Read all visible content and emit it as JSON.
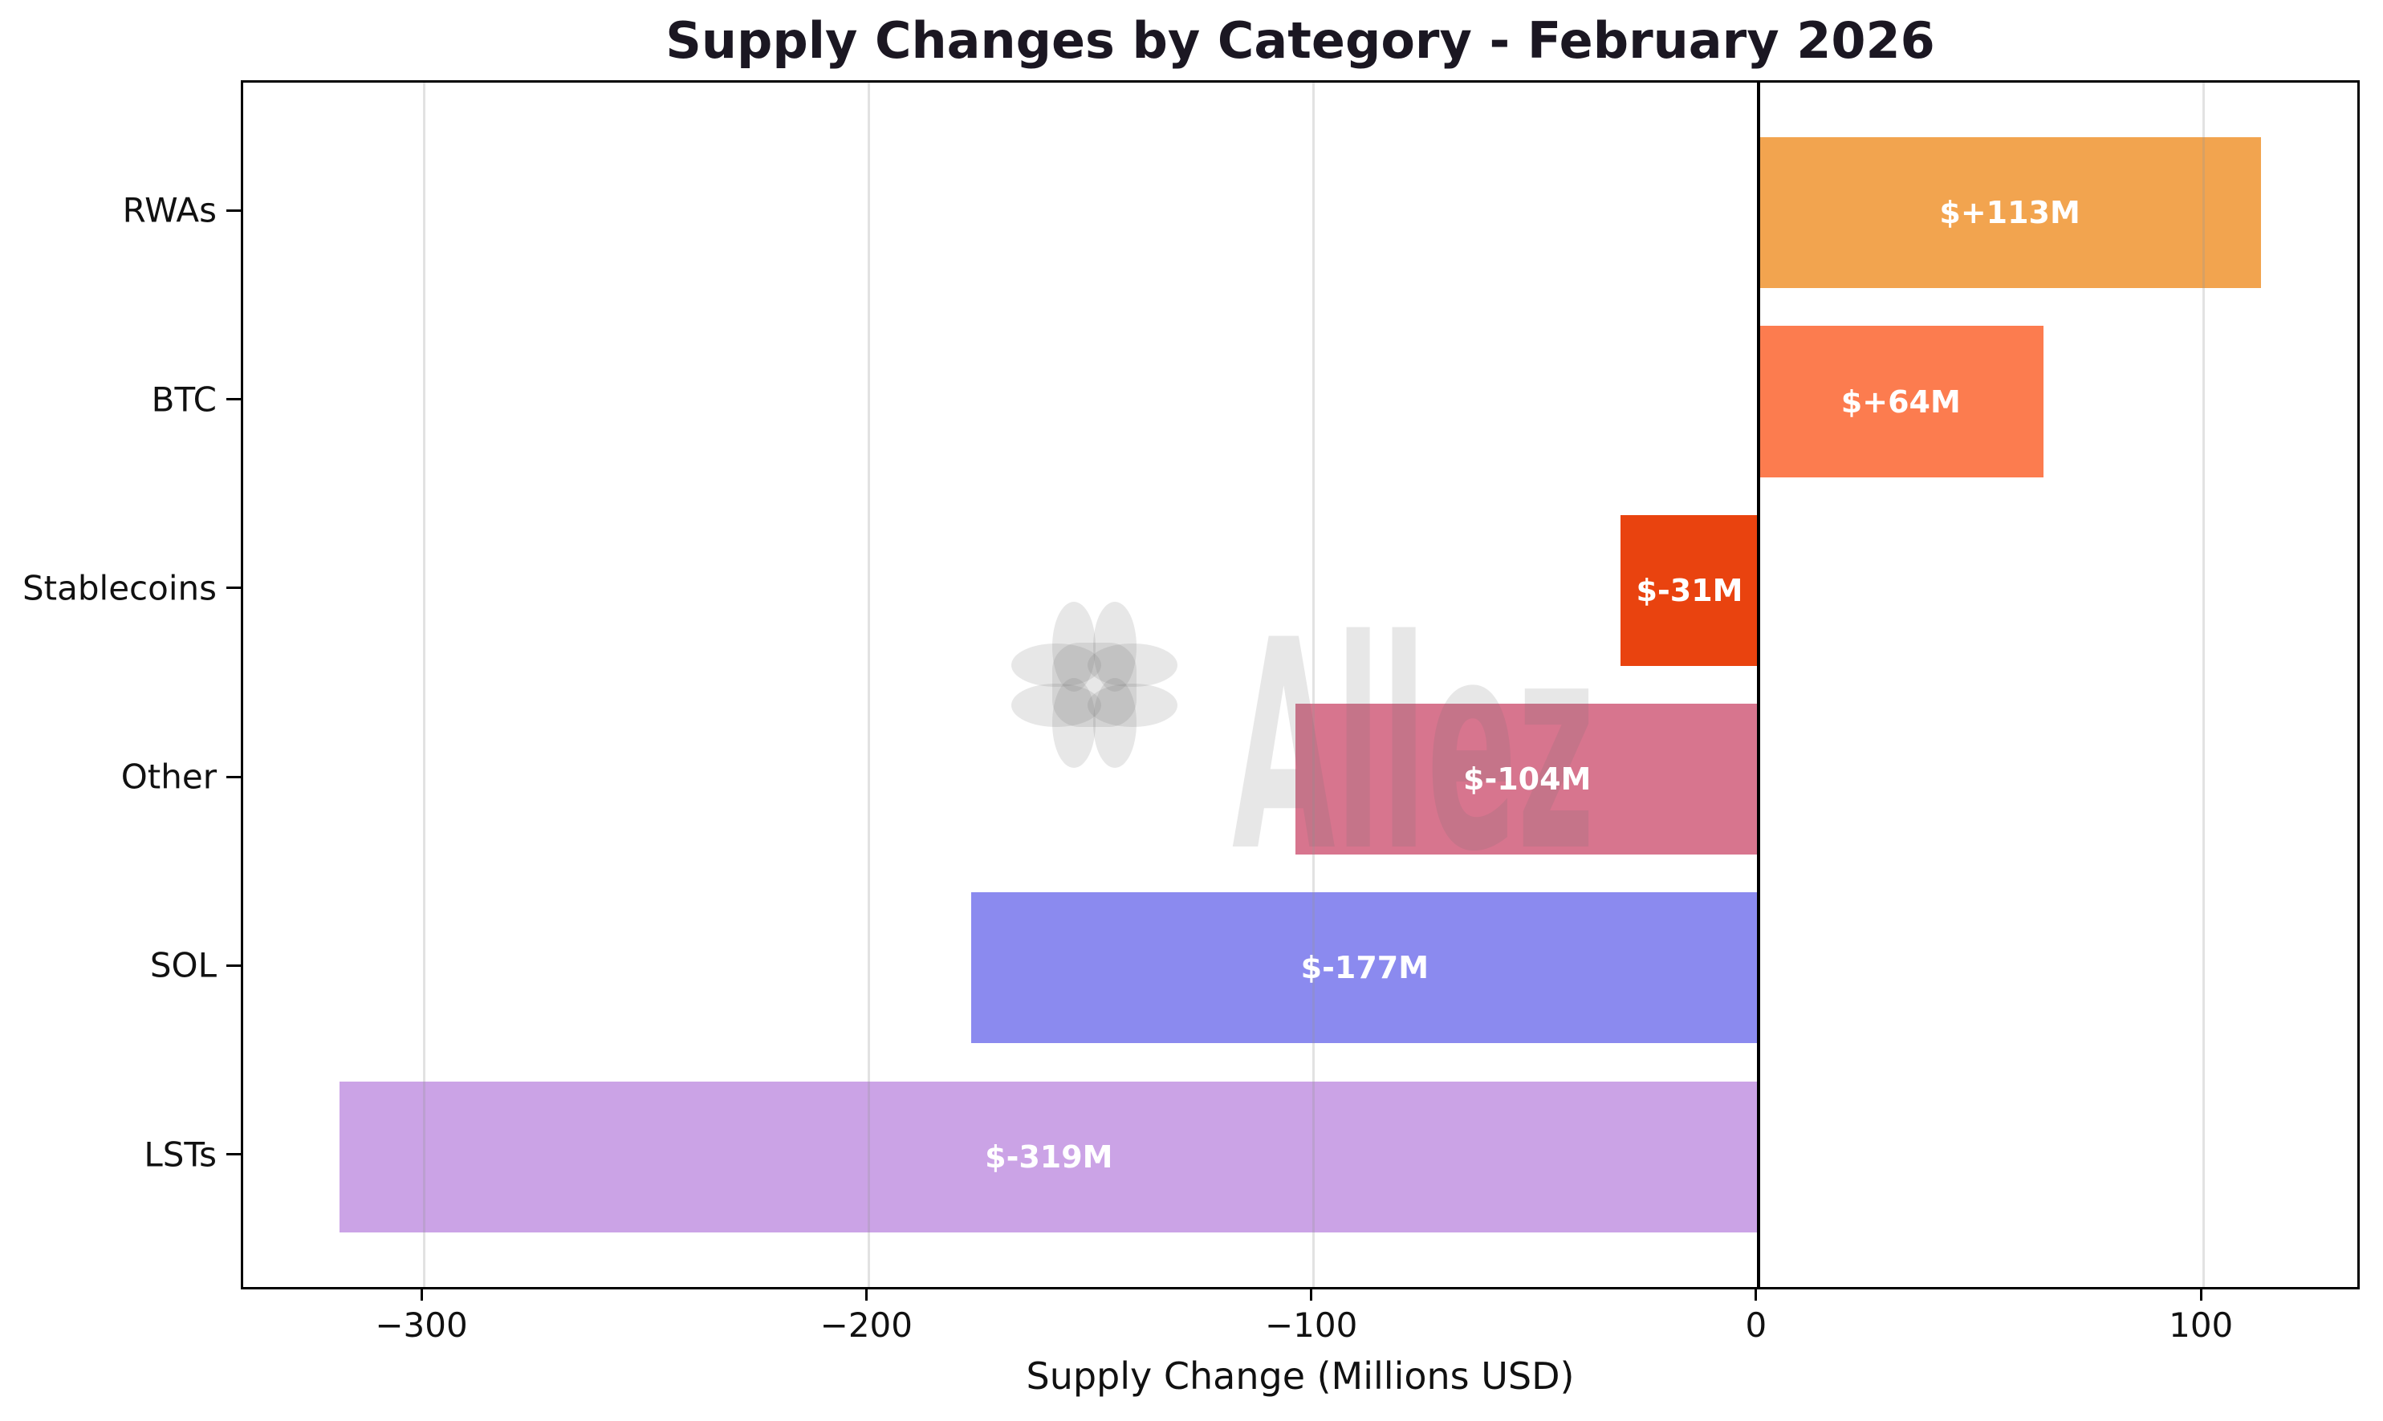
{
  "title": "Supply Changes by Category - February 2026",
  "watermark": {
    "text": "Allez",
    "logo": "allez-asterisk-logo",
    "color": "#ebebeb"
  },
  "colors": {
    "background": "#ffffff",
    "title_text": "#1b1722",
    "axis_text": "#111111",
    "spine": "#000000",
    "zero_line": "#000000",
    "bar_label_text": "#ffffff",
    "gridline": "#ececec"
  },
  "chart_data": {
    "type": "bar",
    "orientation": "horizontal",
    "title": "Supply Changes by Category - February 2026",
    "xlabel": "Supply Change (Millions USD)",
    "ylabel": "",
    "categories": [
      "RWAs",
      "BTC",
      "Stablecoins",
      "Other",
      "SOL",
      "LSTs"
    ],
    "values": [
      113,
      64,
      -31,
      -104,
      -177,
      -319
    ],
    "bar_labels": [
      "$+113M",
      "$+64M",
      "$-31M",
      "$-104M",
      "$-177M",
      "$-319M"
    ],
    "bar_colors": [
      "#F2A44F",
      "#FC7C4F",
      "#E9430F",
      "#D7758E",
      "#8B8AEF",
      "#CBA3E6"
    ],
    "xticks": [
      -300,
      -200,
      -100,
      0,
      100
    ],
    "xtick_labels": [
      "−300",
      "−200",
      "−100",
      "0",
      "100"
    ],
    "xlim": [
      -340.6,
      134.6
    ],
    "grid": true,
    "grid_axis": "x",
    "zero_line": true,
    "legend": false
  }
}
